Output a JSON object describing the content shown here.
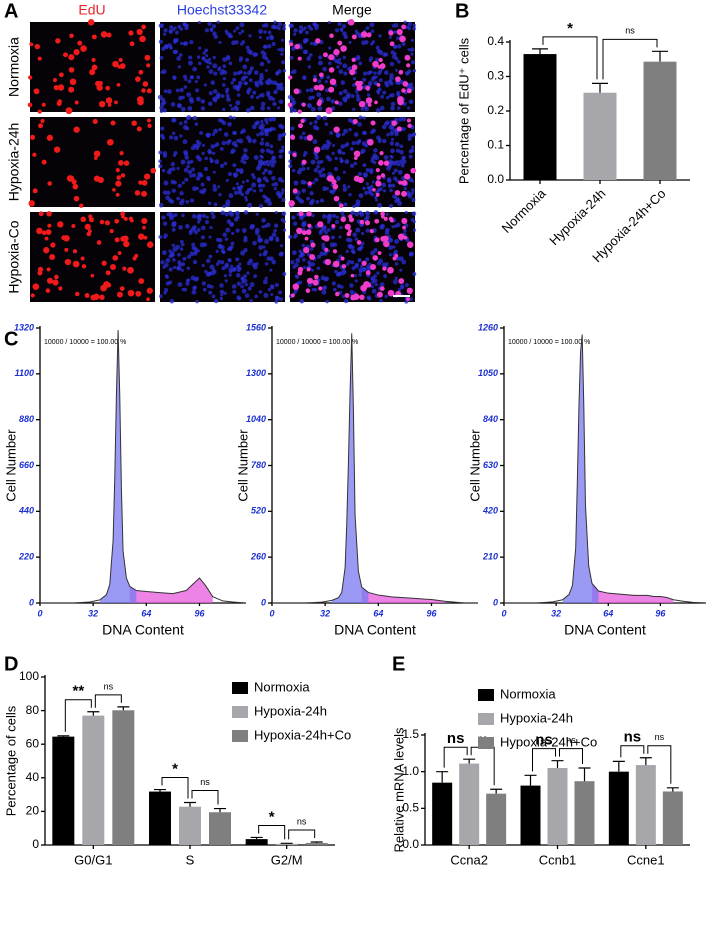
{
  "panel_labels": [
    "A",
    "B",
    "C",
    "D",
    "E"
  ],
  "microscopy": {
    "columns": [
      "EdU",
      "Hoechst33342",
      "Merge"
    ],
    "rows": [
      "Normoxia",
      "Hypoxia-24h",
      "Hypoxia-Co"
    ]
  },
  "chart_data": [
    {
      "type": "bar",
      "ylabel": "Percentage of EdU⁺ cells",
      "categories": [
        "Normoxia",
        "Hypoxia-24h",
        "Hypoxia-24h+Co"
      ],
      "values": [
        0.365,
        0.253,
        0.343
      ],
      "errors": [
        0.015,
        0.027,
        0.03
      ],
      "colors": [
        "#000000",
        "#a7a7ab",
        "#7f7f7f"
      ],
      "significance": [
        "*",
        "ns"
      ],
      "ylim": [
        0,
        0.4
      ],
      "yticks": [
        {
          "value": 0,
          "label": "0.0"
        },
        0.1,
        0.2,
        0.3,
        0.4
      ]
    },
    {
      "type": "line",
      "annotation": "10000 / 10000 = 100.00 %",
      "xlabel": "DNA Content",
      "ylabel": "Cell Number",
      "color": "#333333",
      "x": [
        0,
        10,
        20,
        30,
        36,
        40,
        42,
        44,
        45,
        46,
        47,
        48,
        49,
        50,
        52,
        54,
        58,
        64,
        72,
        80,
        88,
        92,
        96,
        100,
        104,
        110,
        116,
        124
      ],
      "values": [
        0,
        0,
        0,
        5,
        15,
        40,
        90,
        300,
        600,
        1000,
        1310,
        1000,
        550,
        250,
        120,
        80,
        60,
        55,
        50,
        45,
        60,
        90,
        120,
        80,
        30,
        10,
        5,
        0
      ],
      "xlim": [
        0,
        124
      ],
      "xticks": [
        0,
        32,
        64,
        96
      ],
      "ylim": [
        0,
        1320
      ],
      "yticks": [
        0,
        220,
        440,
        660,
        880,
        1100,
        1320
      ]
    },
    {
      "type": "line",
      "annotation": "10000 / 10000 = 100.00 %",
      "xlabel": "DNA Content",
      "ylabel": "Cell Number",
      "color": "#333333",
      "x": [
        0,
        10,
        20,
        30,
        36,
        40,
        42,
        44,
        45,
        46,
        47,
        48,
        49,
        50,
        52,
        54,
        58,
        64,
        72,
        80,
        88,
        92,
        96,
        100,
        104,
        110,
        116,
        124
      ],
      "values": [
        0,
        0,
        0,
        5,
        15,
        30,
        60,
        200,
        450,
        800,
        1200,
        1530,
        1100,
        500,
        180,
        90,
        60,
        45,
        35,
        30,
        25,
        22,
        20,
        15,
        10,
        5,
        0,
        0
      ],
      "xlim": [
        0,
        124
      ],
      "xticks": [
        0,
        32,
        64,
        96
      ],
      "ylim": [
        0,
        1560
      ],
      "yticks": [
        0,
        260,
        520,
        780,
        1040,
        1300,
        1560
      ]
    },
    {
      "type": "line",
      "annotation": "10000 / 10000 = 100.00 %",
      "xlabel": "DNA Content",
      "ylabel": "Cell Number",
      "color": "#333333",
      "x": [
        0,
        10,
        20,
        30,
        36,
        40,
        42,
        44,
        45,
        46,
        47,
        48,
        49,
        50,
        52,
        54,
        58,
        64,
        72,
        80,
        88,
        92,
        96,
        100,
        104,
        110,
        116,
        124
      ],
      "values": [
        0,
        0,
        0,
        5,
        15,
        40,
        80,
        250,
        550,
        900,
        1150,
        1230,
        900,
        450,
        170,
        90,
        55,
        45,
        40,
        35,
        35,
        30,
        30,
        25,
        15,
        8,
        3,
        0
      ],
      "xlim": [
        0,
        124
      ],
      "xticks": [
        0,
        32,
        64,
        96
      ],
      "ylim": [
        0,
        1260
      ],
      "yticks": [
        0,
        210,
        420,
        630,
        840,
        1050,
        1260
      ]
    },
    {
      "type": "bar",
      "ylabel": "Percentage of cells",
      "categories": [
        "G0/G1",
        "S",
        "G2/M"
      ],
      "series": [
        {
          "name": "Normoxia",
          "color": "#000000",
          "values": [
            64.5,
            31.8,
            3.5
          ],
          "errors": [
            0.5,
            1.2,
            1.0
          ]
        },
        {
          "name": "Hypoxia-24h",
          "color": "#a7a7ab",
          "values": [
            77,
            22.8,
            0.7
          ],
          "errors": [
            2.3,
            2.5,
            0.3
          ]
        },
        {
          "name": "Hypoxia-24h+Co",
          "color": "#7f7f7f",
          "values": [
            80.2,
            19.5,
            1.2
          ],
          "errors": [
            2.0,
            2.2,
            0.6
          ]
        }
      ],
      "significance": [
        [
          "**",
          "ns"
        ],
        [
          "*",
          "ns"
        ],
        [
          "*",
          "ns"
        ]
      ],
      "ylim": [
        0,
        100
      ],
      "yticks": [
        0,
        20,
        40,
        60,
        80,
        100
      ]
    },
    {
      "type": "bar",
      "ylabel": "Relative mRNA levels",
      "categories": [
        "Ccna2",
        "Ccnb1",
        "Ccne1"
      ],
      "series": [
        {
          "name": "Normoxia",
          "color": "#000000",
          "values": [
            0.85,
            0.81,
            1.0
          ],
          "errors": [
            0.15,
            0.14,
            0.14
          ]
        },
        {
          "name": "Hypoxia-24h",
          "color": "#a7a7ab",
          "values": [
            1.11,
            1.05,
            1.09
          ],
          "errors": [
            0.06,
            0.1,
            0.1
          ]
        },
        {
          "name": "Hypoxia-24h+Co",
          "color": "#7f7f7f",
          "values": [
            0.7,
            0.87,
            0.73
          ],
          "errors": [
            0.06,
            0.18,
            0.05
          ]
        }
      ],
      "significance": [
        [
          "ns",
          "ns"
        ],
        [
          "ns",
          "ns"
        ],
        [
          "ns",
          "ns"
        ]
      ],
      "ylim": [
        0,
        1.5
      ],
      "yticks": [
        {
          "value": 0,
          "label": "0.0"
        },
        {
          "value": 0.5,
          "label": "0.5"
        },
        {
          "value": 1,
          "label": "1.0"
        },
        {
          "value": 1.5,
          "label": "1.5"
        }
      ]
    }
  ]
}
